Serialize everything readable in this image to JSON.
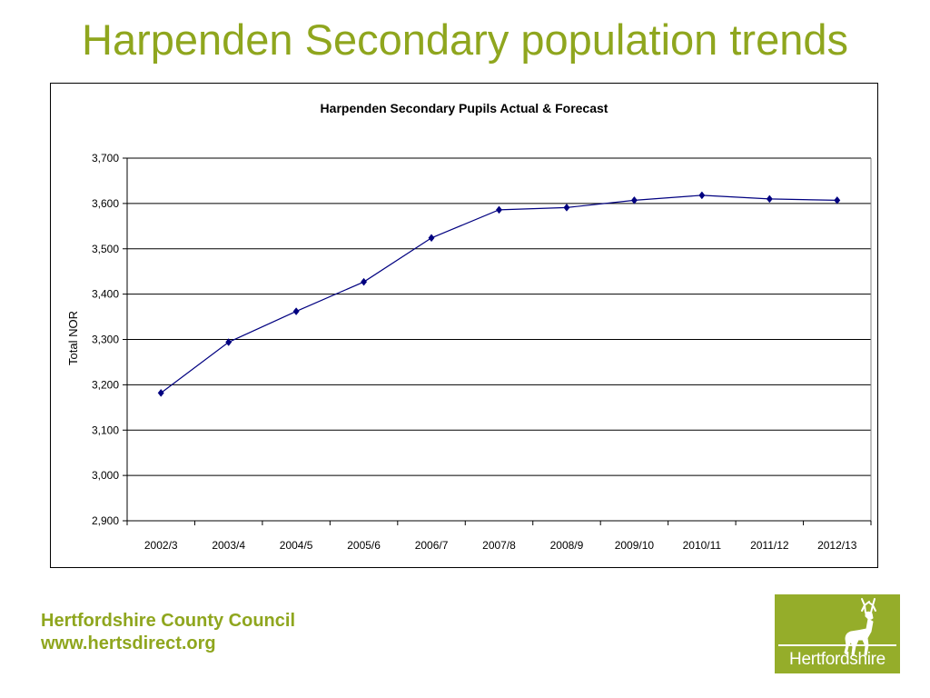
{
  "slide": {
    "title": "Harpenden Secondary population trends",
    "footer_org": "Hertfordshire County Council",
    "footer_url": "www.hertsdirect.org",
    "logo_text": "Hertfordshire"
  },
  "colors": {
    "accent": "#8fa61e",
    "logo_bg": "#95ad2a",
    "series": "#000080"
  },
  "chart_data": {
    "type": "line",
    "title": "Harpenden Secondary Pupils Actual & Forecast",
    "xlabel": "",
    "ylabel": "Total NOR",
    "ylim": [
      2900,
      3700
    ],
    "yticks": [
      2900,
      3000,
      3100,
      3200,
      3300,
      3400,
      3500,
      3600,
      3700
    ],
    "ytick_labels": [
      "2,900",
      "3,000",
      "3,100",
      "3,200",
      "3,300",
      "3,400",
      "3,500",
      "3,600",
      "3,700"
    ],
    "grid": true,
    "categories": [
      "2002/3",
      "2003/4",
      "2004/5",
      "2005/6",
      "2006/7",
      "2007/8",
      "2008/9",
      "2009/10",
      "2010/11",
      "2011/12",
      "2012/13"
    ],
    "series": [
      {
        "values": [
          3182,
          3294,
          3362,
          3427,
          3524,
          3586,
          3591,
          3607,
          3618,
          3610,
          3607
        ],
        "marker": "diamond",
        "color": "#000080"
      }
    ]
  }
}
